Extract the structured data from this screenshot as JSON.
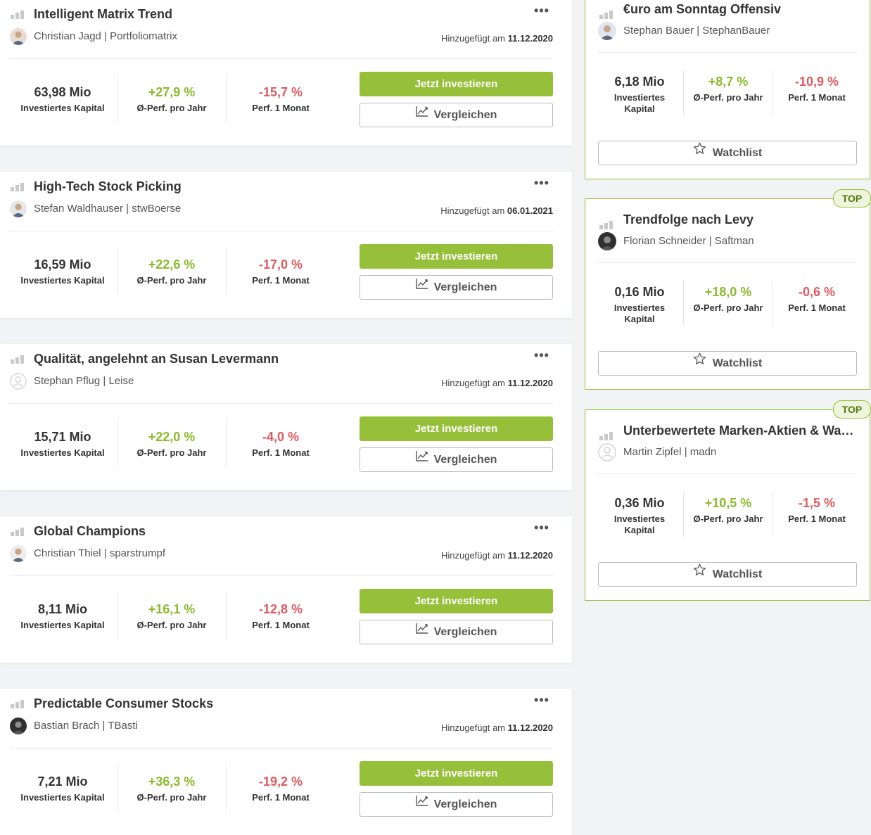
{
  "colors": {
    "accent": "#97c03a",
    "positive": "#8bbb2b",
    "negative": "#e05a5f"
  },
  "icons": {
    "more": "more-dots-icon",
    "compare": "chart-line-icon",
    "watchlist": "star-outline-icon",
    "rating": "signal-bars-icon"
  },
  "portfolios": [
    {
      "title": "Intelligent Matrix Trend",
      "author": "Christian Jagd | Portfoliomatrix",
      "added_label": "Hinzugefügt am",
      "added_date": "11.12.2020",
      "capital": "63,98 Mio",
      "capital_label": "Investiertes Kapital",
      "perf_year": "+27,9 %",
      "perf_year_label": "Ø-Perf. pro Jahr",
      "perf_month": "-15,7 %",
      "perf_month_label": "Perf. 1 Monat",
      "invest_label": "Jetzt investieren",
      "compare_label": "Vergleichen",
      "more_label": "•••"
    },
    {
      "title": "High-Tech Stock Picking",
      "author": "Stefan Waldhauser | stwBoerse",
      "added_label": "Hinzugefügt am",
      "added_date": "06.01.2021",
      "capital": "16,59 Mio",
      "capital_label": "Investiertes Kapital",
      "perf_year": "+22,6 %",
      "perf_year_label": "Ø-Perf. pro Jahr",
      "perf_month": "-17,0 %",
      "perf_month_label": "Perf. 1 Monat",
      "invest_label": "Jetzt investieren",
      "compare_label": "Vergleichen",
      "more_label": "•••"
    },
    {
      "title": "Qualität, angelehnt an Susan Levermann",
      "author": "Stephan Pflug | Leise",
      "added_label": "Hinzugefügt am",
      "added_date": "11.12.2020",
      "capital": "15,71 Mio",
      "capital_label": "Investiertes Kapital",
      "perf_year": "+22,0 %",
      "perf_year_label": "Ø-Perf. pro Jahr",
      "perf_month": "-4,0 %",
      "perf_month_label": "Perf. 1 Monat",
      "invest_label": "Jetzt investieren",
      "compare_label": "Vergleichen",
      "more_label": "•••"
    },
    {
      "title": "Global Champions",
      "author": "Christian Thiel | sparstrumpf",
      "added_label": "Hinzugefügt am",
      "added_date": "11.12.2020",
      "capital": "8,11 Mio",
      "capital_label": "Investiertes Kapital",
      "perf_year": "+16,1 %",
      "perf_year_label": "Ø-Perf. pro Jahr",
      "perf_month": "-12,8 %",
      "perf_month_label": "Perf. 1 Monat",
      "invest_label": "Jetzt investieren",
      "compare_label": "Vergleichen",
      "more_label": "•••"
    },
    {
      "title": "Predictable Consumer Stocks",
      "author": "Bastian Brach | TBasti",
      "added_label": "Hinzugefügt am",
      "added_date": "11.12.2020",
      "capital": "7,21 Mio",
      "capital_label": "Investiertes Kapital",
      "perf_year": "+36,3 %",
      "perf_year_label": "Ø-Perf. pro Jahr",
      "perf_month": "-19,2 %",
      "perf_month_label": "Perf. 1 Monat",
      "invest_label": "Jetzt investieren",
      "compare_label": "Vergleichen",
      "more_label": "•••"
    }
  ],
  "sidebar": [
    {
      "title": "€uro am Sonntag Offensiv",
      "author": "Stephan Bauer | StephanBauer",
      "badge": "",
      "capital": "6,18 Mio",
      "capital_label_1": "Investiertes",
      "capital_label_2": "Kapital",
      "perf_year": "+8,7 %",
      "perf_year_label": "Ø-Perf. pro Jahr",
      "perf_month": "-10,9 %",
      "perf_month_label": "Perf. 1 Monat",
      "watchlist_label": "Watchlist"
    },
    {
      "title": "Trendfolge nach Levy",
      "author": "Florian Schneider | Saftman",
      "badge": "TOP",
      "capital": "0,16 Mio",
      "capital_label_1": "Investiertes",
      "capital_label_2": "Kapital",
      "perf_year": "+18,0 %",
      "perf_year_label": "Ø-Perf. pro Jahr",
      "perf_month": "-0,6 %",
      "perf_month_label": "Perf. 1 Monat",
      "watchlist_label": "Watchlist"
    },
    {
      "title": "Unterbewertete Marken-Aktien & Wachstumswerte",
      "author": "Martin Zipfel | madn",
      "badge": "TOP",
      "capital": "0,36 Mio",
      "capital_label_1": "Investiertes",
      "capital_label_2": "Kapital",
      "perf_year": "+10,5 %",
      "perf_year_label": "Ø-Perf. pro Jahr",
      "perf_month": "-1,5 %",
      "perf_month_label": "Perf. 1 Monat",
      "watchlist_label": "Watchlist"
    }
  ]
}
